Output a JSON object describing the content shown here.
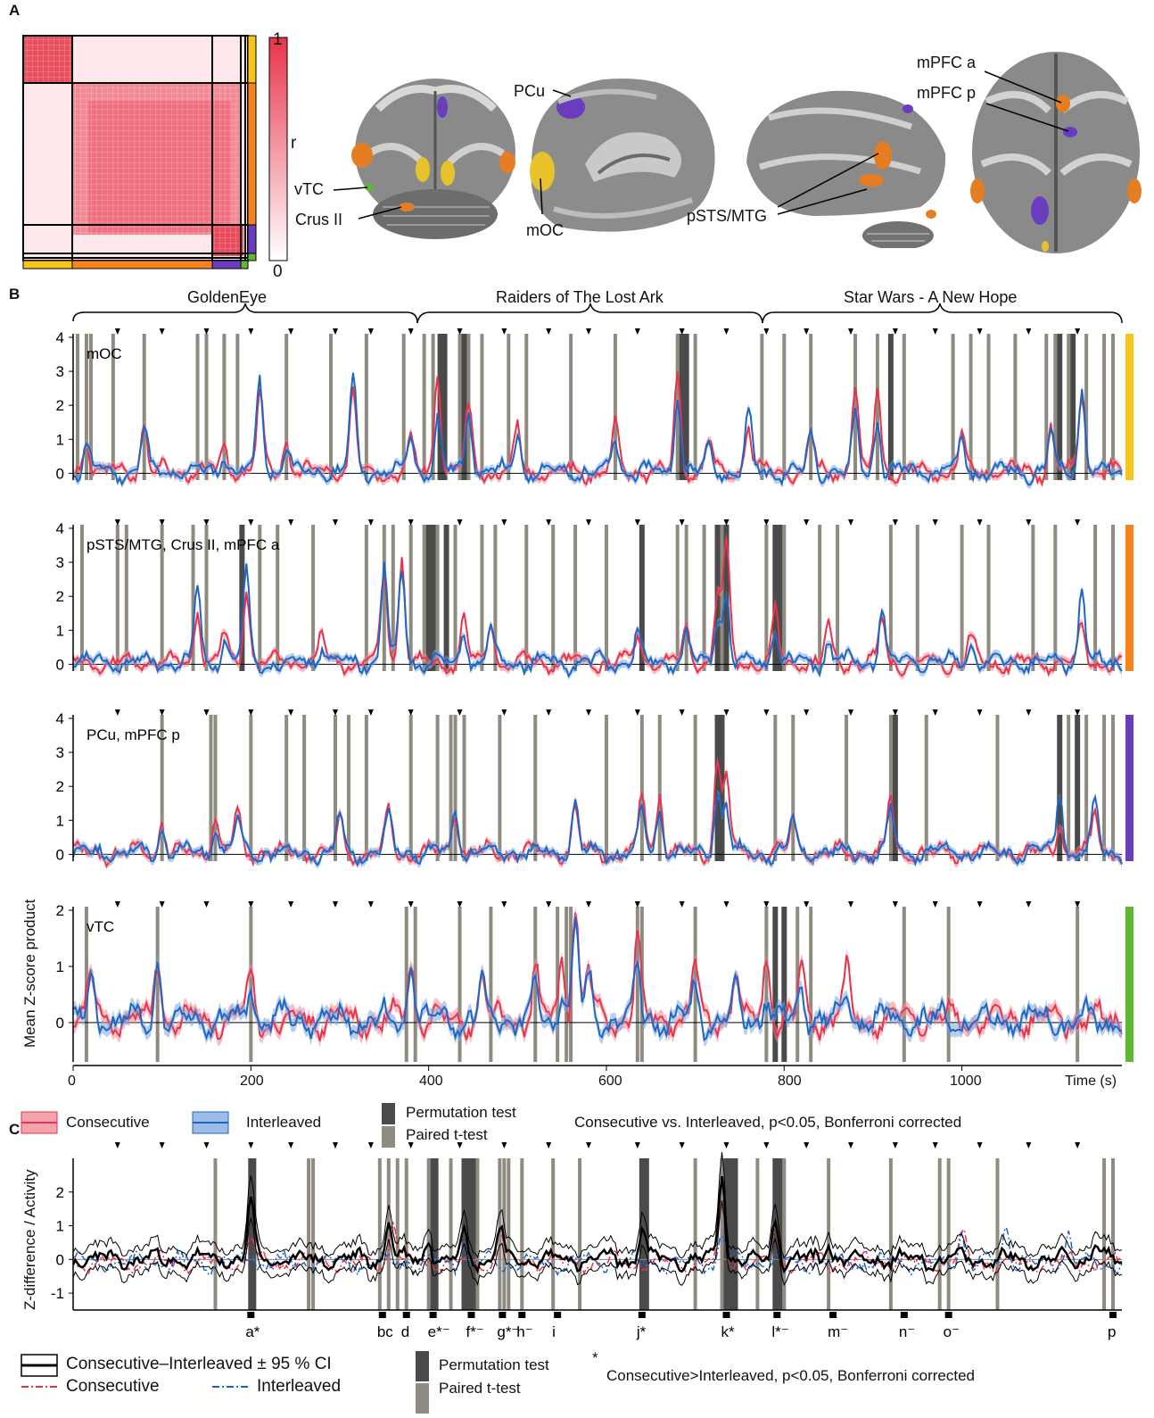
{
  "panels": {
    "a": "A",
    "b": "B",
    "c": "C"
  },
  "matrix": {
    "colorbar_max": "1",
    "colorbar_min": "0",
    "colorbar_label": "r",
    "colors": {
      "high": "#e8334a",
      "low": "#ffffff"
    },
    "group_colors": [
      "#f5c51a",
      "#f7831f",
      "#6a3dbf",
      "#5fb832"
    ]
  },
  "brain_labels": {
    "pcu": "PCu",
    "vtc": "vTC",
    "crus": "Crus II",
    "moc": "mOC",
    "psts": "pSTS/MTG",
    "mpfc_a": "mPFC a",
    "mpfc_p": "mPFC p"
  },
  "movies": [
    "GoldenEye",
    "Raiders of The Lost Ark",
    "Star Wars - A New Hope"
  ],
  "chart_data": [
    {
      "type": "line",
      "panel": "B",
      "ylabel": "Mean Z-score product",
      "xlabel": "Time (s)",
      "xlim": [
        0,
        1180
      ],
      "xticks": [
        0,
        200,
        400,
        600,
        800,
        1000
      ],
      "movie_boundaries_s": [
        385,
        770
      ],
      "series_legend": [
        "Consecutive",
        "Interleaved"
      ],
      "series_colors": {
        "Consecutive": "#e8334a",
        "Interleaved": "#1f66c4"
      },
      "bar_legend": [
        "Permutation test",
        "Paired t-test"
      ],
      "bar_colors": {
        "Permutation test": "#4a4a4a",
        "Paired t-test": "#8f8b80"
      },
      "note": "Consecutive vs. Interleaved,  p<0.05, Bonferroni corrected",
      "subplots": [
        {
          "label": "mOC",
          "color": "#f5c51a",
          "ylim": [
            0,
            4
          ],
          "yticks": [
            0,
            1,
            2,
            3,
            4
          ],
          "peaks_consecutive": [
            [
              15,
              1.0
            ],
            [
              80,
              1.5
            ],
            [
              170,
              0.8
            ],
            [
              210,
              2.3
            ],
            [
              240,
              1.0
            ],
            [
              315,
              2.5
            ],
            [
              380,
              0.9
            ],
            [
              410,
              3.0
            ],
            [
              445,
              1.9
            ],
            [
              500,
              1.3
            ],
            [
              610,
              1.4
            ],
            [
              680,
              2.8
            ],
            [
              715,
              1.0
            ],
            [
              760,
              1.4
            ],
            [
              830,
              1.2
            ],
            [
              880,
              2.5
            ],
            [
              905,
              2.6
            ],
            [
              1000,
              1.1
            ],
            [
              1100,
              1.3
            ],
            [
              1135,
              2.4
            ]
          ],
          "peaks_interleaved": [
            [
              15,
              0.8
            ],
            [
              80,
              1.3
            ],
            [
              170,
              0.6
            ],
            [
              210,
              2.7
            ],
            [
              240,
              0.7
            ],
            [
              315,
              2.8
            ],
            [
              380,
              1.0
            ],
            [
              410,
              1.6
            ],
            [
              445,
              2.0
            ],
            [
              500,
              1.1
            ],
            [
              610,
              1.0
            ],
            [
              680,
              2.3
            ],
            [
              715,
              0.8
            ],
            [
              760,
              1.7
            ],
            [
              830,
              1.1
            ],
            [
              880,
              1.6
            ],
            [
              905,
              1.5
            ],
            [
              1000,
              0.9
            ],
            [
              1100,
              1.1
            ],
            [
              1135,
              2.5
            ]
          ],
          "perm_s": [
            413,
            418,
            440,
            685,
            690,
            920,
            1110,
            1125
          ],
          "ttest_s": [
            5,
            15,
            20,
            45,
            80,
            140,
            150,
            170,
            185,
            240,
            290,
            330,
            372,
            395,
            405,
            435,
            445,
            460,
            490,
            510,
            560,
            610,
            680,
            700,
            775,
            800,
            830,
            880,
            905,
            935,
            990,
            1010,
            1030,
            1060,
            1095,
            1105,
            1120,
            1140,
            1160,
            1170
          ]
        },
        {
          "label": "pSTS/MTG, Crus II, mPFC a",
          "color": "#f7831f",
          "ylim": [
            0,
            4
          ],
          "yticks": [
            0,
            1,
            2,
            3,
            4
          ],
          "peaks_consecutive": [
            [
              140,
              1.6
            ],
            [
              170,
              0.9
            ],
            [
              195,
              2.3
            ],
            [
              280,
              0.8
            ],
            [
              350,
              2.7
            ],
            [
              370,
              3.2
            ],
            [
              440,
              1.4
            ],
            [
              470,
              1.2
            ],
            [
              635,
              0.8
            ],
            [
              690,
              1.0
            ],
            [
              725,
              2.0
            ],
            [
              735,
              3.5
            ],
            [
              790,
              1.5
            ],
            [
              850,
              1.0
            ],
            [
              910,
              1.4
            ],
            [
              1010,
              0.8
            ],
            [
              1135,
              1.0
            ]
          ],
          "peaks_interleaved": [
            [
              140,
              2.2
            ],
            [
              170,
              0.7
            ],
            [
              195,
              2.6
            ],
            [
              280,
              0.6
            ],
            [
              350,
              2.9
            ],
            [
              370,
              2.7
            ],
            [
              440,
              1.0
            ],
            [
              470,
              1.0
            ],
            [
              635,
              0.9
            ],
            [
              690,
              0.8
            ],
            [
              725,
              1.4
            ],
            [
              735,
              2.0
            ],
            [
              790,
              1.1
            ],
            [
              850,
              0.6
            ],
            [
              910,
              1.7
            ],
            [
              1010,
              0.6
            ],
            [
              1135,
              2.3
            ]
          ],
          "perm_s": [
            190,
            400,
            405,
            420,
            640,
            725,
            735,
            790,
            795
          ],
          "ttest_s": [
            10,
            50,
            60,
            100,
            135,
            150,
            190,
            210,
            230,
            270,
            330,
            350,
            360,
            380,
            395,
            410,
            430,
            460,
            475,
            510,
            540,
            565,
            600,
            640,
            680,
            690,
            710,
            730,
            780,
            800,
            840,
            860,
            920,
            950,
            1000,
            1030,
            1080,
            1105,
            1150,
            1170
          ]
        },
        {
          "label": "PCu, mPFC p",
          "color": "#6a3dbf",
          "ylim": [
            0,
            4
          ],
          "yticks": [
            0,
            1,
            2,
            3,
            4
          ],
          "peaks_consecutive": [
            [
              100,
              0.9
            ],
            [
              160,
              1.1
            ],
            [
              185,
              1.2
            ],
            [
              300,
              1.0
            ],
            [
              355,
              1.3
            ],
            [
              430,
              1.3
            ],
            [
              565,
              1.3
            ],
            [
              640,
              1.8
            ],
            [
              660,
              1.8
            ],
            [
              725,
              2.8
            ],
            [
              735,
              2.3
            ],
            [
              810,
              1.0
            ],
            [
              920,
              1.6
            ],
            [
              1110,
              0.9
            ],
            [
              1150,
              1.1
            ]
          ],
          "peaks_interleaved": [
            [
              100,
              0.8
            ],
            [
              160,
              0.9
            ],
            [
              185,
              0.9
            ],
            [
              300,
              1.1
            ],
            [
              355,
              1.1
            ],
            [
              430,
              1.2
            ],
            [
              565,
              1.4
            ],
            [
              640,
              1.2
            ],
            [
              660,
              1.3
            ],
            [
              725,
              1.9
            ],
            [
              735,
              1.4
            ],
            [
              810,
              1.1
            ],
            [
              920,
              1.2
            ],
            [
              1110,
              1.9
            ],
            [
              1150,
              1.4
            ]
          ],
          "perm_s": [
            725,
            730,
            925,
            1110,
            1130
          ],
          "ttest_s": [
            100,
            155,
            160,
            200,
            240,
            260,
            295,
            310,
            330,
            380,
            410,
            425,
            430,
            440,
            480,
            520,
            600,
            640,
            660,
            700,
            790,
            810,
            870,
            920,
            960,
            1040,
            1110,
            1120,
            1140,
            1160,
            1170
          ]
        },
        {
          "label": "vTC",
          "color": "#5fb832",
          "ylim": [
            0,
            2
          ],
          "yticks": [
            0,
            1,
            2
          ],
          "peaks_consecutive": [
            [
              20,
              0.8
            ],
            [
              95,
              1.1
            ],
            [
              200,
              0.8
            ],
            [
              380,
              1.0
            ],
            [
              460,
              0.8
            ],
            [
              520,
              0.9
            ],
            [
              550,
              1.1
            ],
            [
              565,
              2.1
            ],
            [
              580,
              0.9
            ],
            [
              635,
              1.5
            ],
            [
              700,
              1.0
            ],
            [
              745,
              0.9
            ],
            [
              780,
              1.2
            ],
            [
              820,
              0.9
            ],
            [
              870,
              0.8
            ]
          ],
          "peaks_interleaved": [
            [
              20,
              0.7
            ],
            [
              95,
              1.1
            ],
            [
              200,
              0.8
            ],
            [
              380,
              1.1
            ],
            [
              460,
              0.6
            ],
            [
              520,
              0.7
            ],
            [
              550,
              0.7
            ],
            [
              565,
              1.7
            ],
            [
              580,
              0.7
            ],
            [
              635,
              0.8
            ],
            [
              700,
              0.6
            ],
            [
              745,
              0.6
            ],
            [
              780,
              0.5
            ],
            [
              820,
              0.6
            ],
            [
              870,
              0.5
            ]
          ],
          "perm_s": [
            790,
            800
          ],
          "ttest_s": [
            15,
            95,
            200,
            375,
            385,
            435,
            470,
            520,
            545,
            555,
            560,
            635,
            640,
            700,
            780,
            790,
            800,
            815,
            830,
            935,
            985,
            1130
          ]
        }
      ]
    },
    {
      "type": "line",
      "panel": "C",
      "ylabel": "Z-difference / Activity",
      "ylim": [
        -1.5,
        3
      ],
      "yticks": [
        -1,
        0,
        1,
        2
      ],
      "legend": [
        "Consecutive–Interleaved ± 95 % CI",
        "Consecutive",
        "Interleaved"
      ],
      "bar_legend": [
        "Permutation test",
        "Paired t-test"
      ],
      "note_star": "*",
      "note": "Consecutive>Interleaved,  p<0.05, Bonferroni corrected",
      "peaks_difference": [
        [
          200,
          1.8
        ],
        [
          355,
          1.2
        ],
        [
          400,
          0.7
        ],
        [
          440,
          0.9
        ],
        [
          480,
          0.9
        ],
        [
          640,
          1.0
        ],
        [
          730,
          2.6
        ],
        [
          790,
          1.2
        ],
        [
          850,
          0.6
        ],
        [
          1150,
          0.6
        ]
      ],
      "event_labels": [
        {
          "t": 200,
          "label": "a",
          "mark": "*"
        },
        {
          "t": 348,
          "label": "bc",
          "mark": ""
        },
        {
          "t": 375,
          "label": "d",
          "mark": ""
        },
        {
          "t": 405,
          "label": "e",
          "mark": "*⁻"
        },
        {
          "t": 448,
          "label": "f",
          "mark": "*⁻"
        },
        {
          "t": 483,
          "label": "g",
          "mark": "*⁻"
        },
        {
          "t": 505,
          "label": "h",
          "mark": "⁻"
        },
        {
          "t": 545,
          "label": "i",
          "mark": ""
        },
        {
          "t": 640,
          "label": "j",
          "mark": "*"
        },
        {
          "t": 735,
          "label": "k",
          "mark": "*"
        },
        {
          "t": 792,
          "label": "l",
          "mark": "*⁻"
        },
        {
          "t": 855,
          "label": "m",
          "mark": "⁻"
        },
        {
          "t": 935,
          "label": "n",
          "mark": "⁻"
        },
        {
          "t": 985,
          "label": "o",
          "mark": "⁻"
        },
        {
          "t": 1170,
          "label": "p",
          "mark": ""
        }
      ],
      "perm_s": [
        200,
        203,
        405,
        408,
        440,
        445,
        450,
        640,
        645,
        735,
        740,
        745,
        790,
        795
      ],
      "ttest_s": [
        160,
        200,
        265,
        270,
        345,
        355,
        365,
        375,
        400,
        405,
        425,
        445,
        455,
        480,
        485,
        490,
        505,
        540,
        570,
        640,
        700,
        730,
        745,
        770,
        790,
        800,
        850,
        920,
        975,
        985,
        1040,
        1160,
        1170
      ]
    }
  ],
  "arrow_times_s": [
    50,
    100,
    150,
    200,
    245,
    295,
    335,
    380,
    435,
    485,
    535,
    580,
    635,
    685,
    735,
    780,
    825,
    875,
    925,
    970,
    1020,
    1075,
    1130
  ]
}
